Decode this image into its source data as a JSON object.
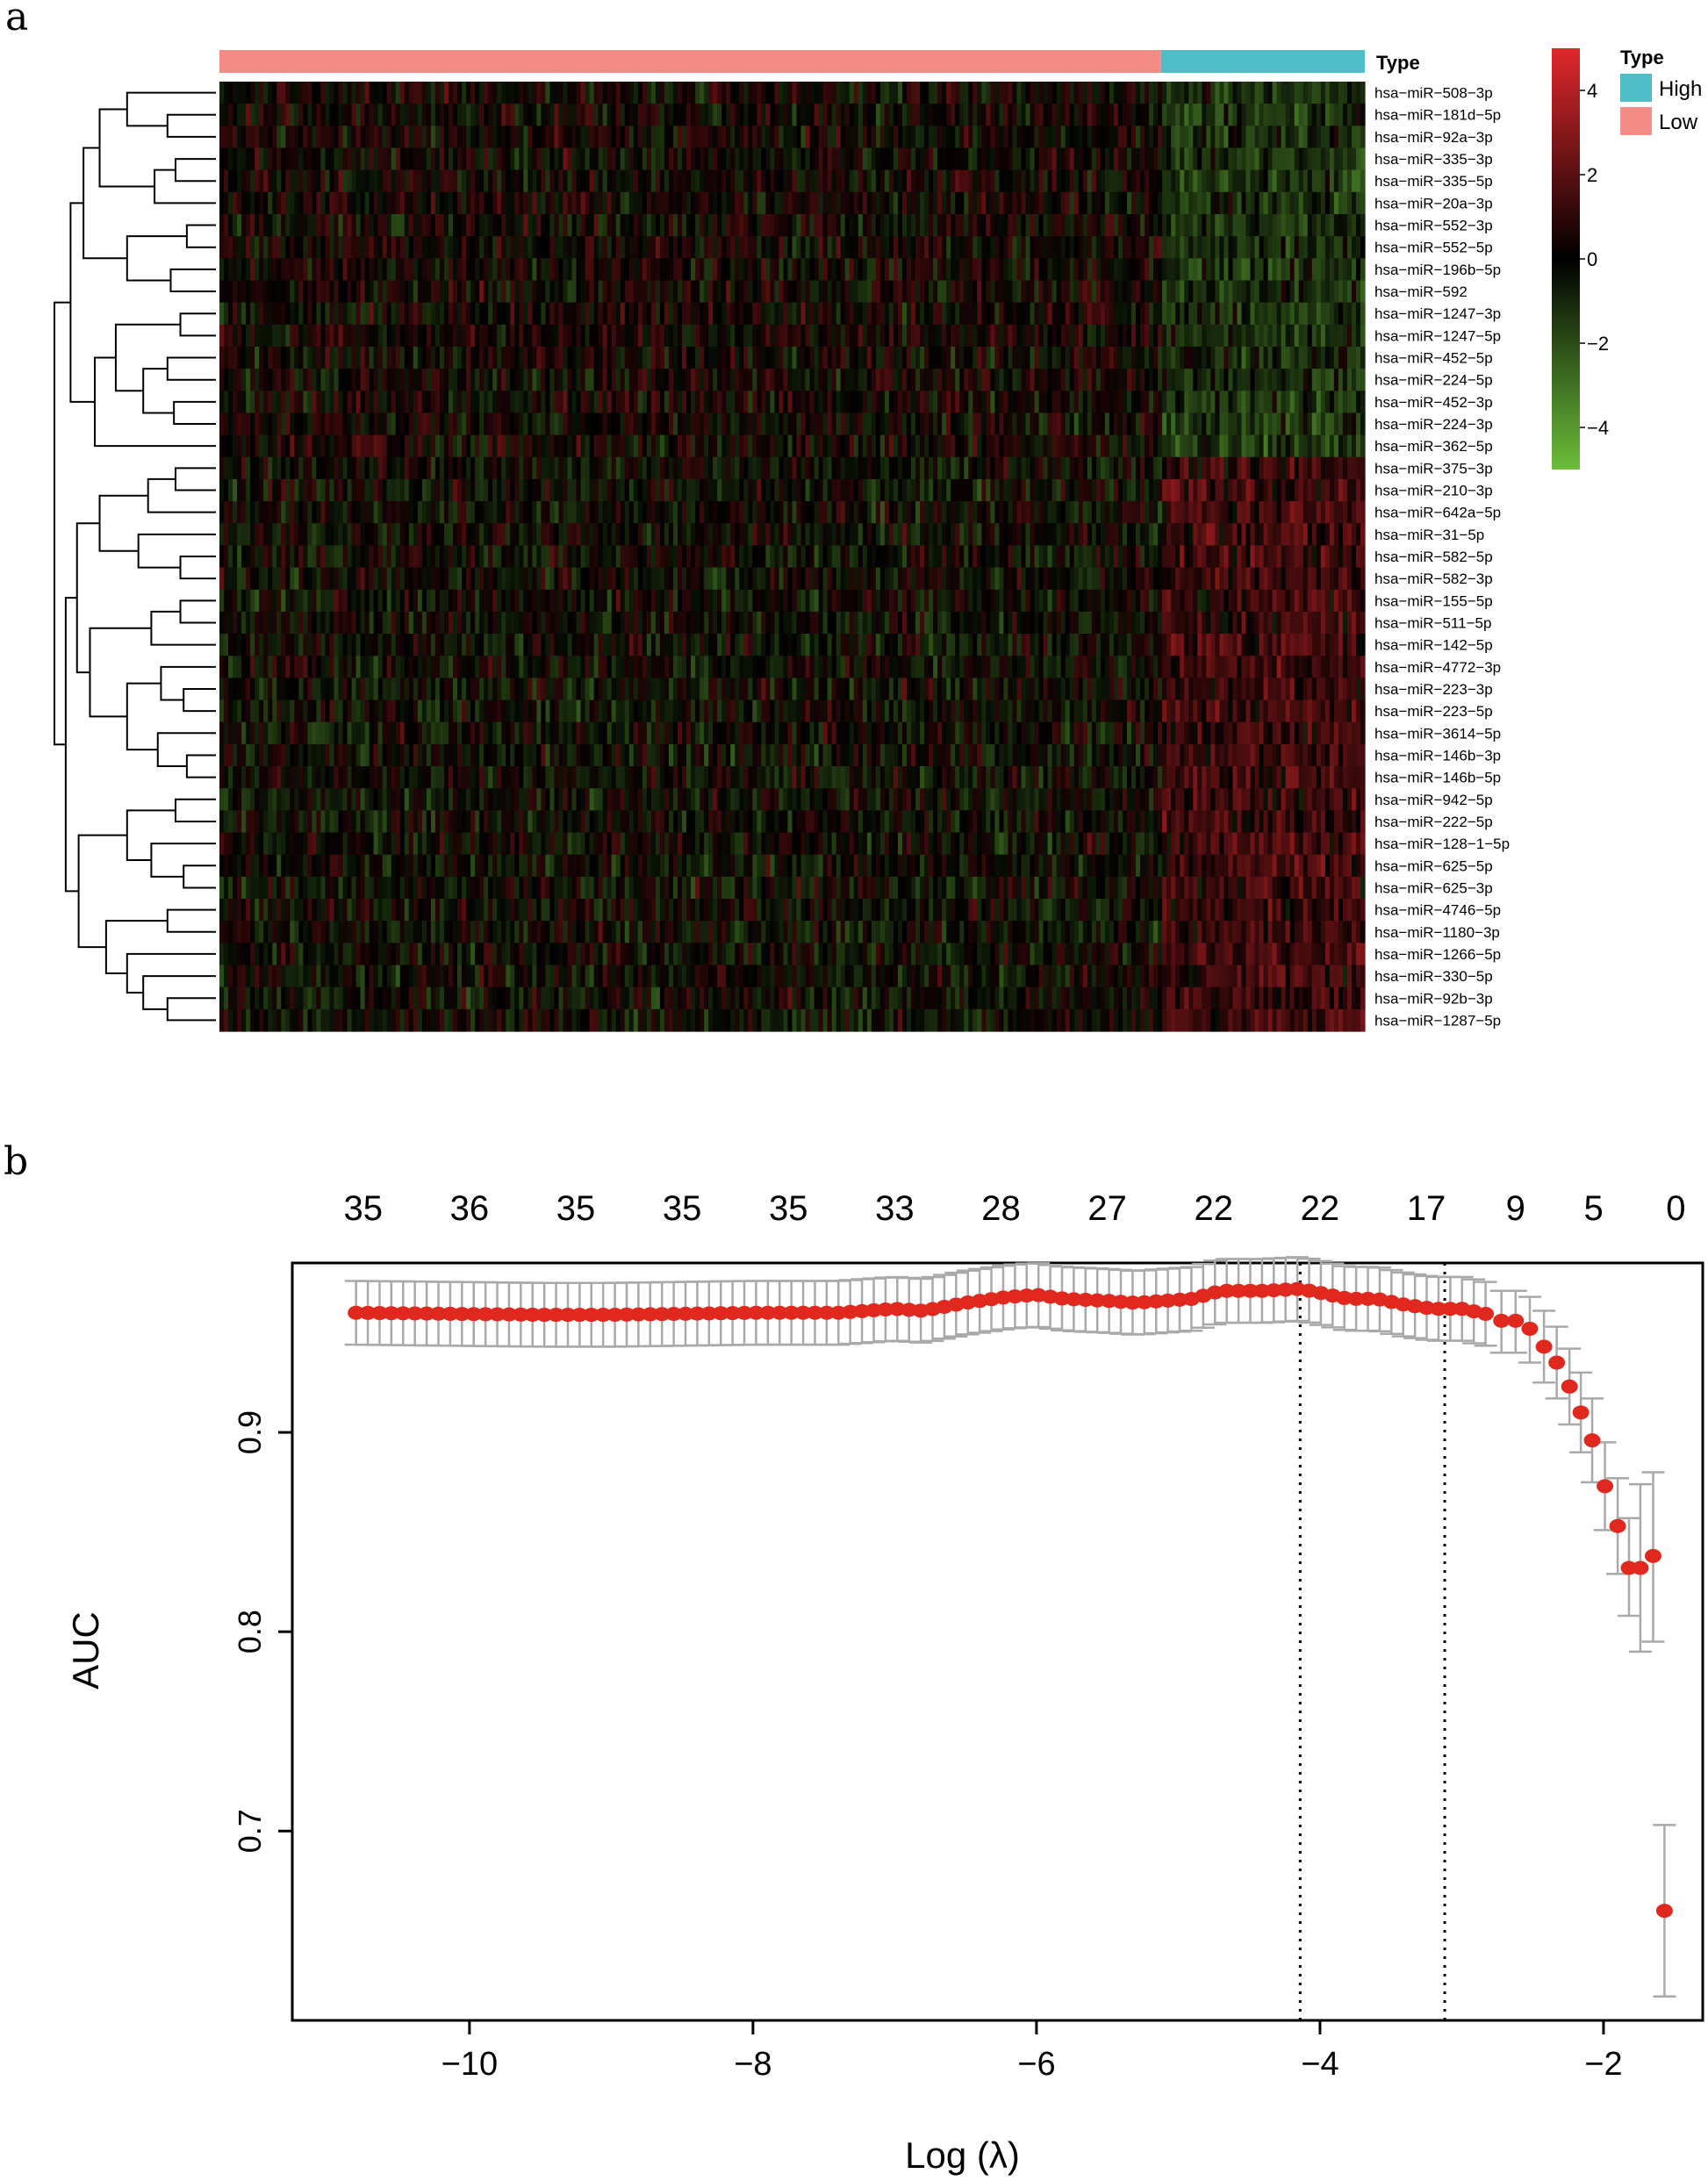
{
  "panels": {
    "a_label": "a",
    "b_label": "b"
  },
  "colors": {
    "high": "#4ebdc7",
    "low": "#f28c85",
    "heat_high": "#e0282c",
    "heat_mid": "#000000",
    "heat_low": "#6cbe3a",
    "point": "#e0281e",
    "errorbar": "#a9a9a9"
  },
  "chart_data": [
    {
      "type": "heatmap",
      "annotation_label": "Type",
      "legend": {
        "title": "Type",
        "items": [
          {
            "label": "High",
            "color": "#4ebdc7"
          },
          {
            "label": "Low",
            "color": "#f28c85"
          }
        ]
      },
      "colorbar": {
        "range": [
          -5,
          5
        ],
        "ticks": [
          "4",
          "2",
          "0",
          "−2",
          "−4"
        ],
        "tick_values": [
          4,
          2,
          0,
          -2,
          -4
        ]
      },
      "sample_groups": {
        "low_fraction": 0.822,
        "high_fraction": 0.178
      },
      "rows": [
        "hsa−miR−508−3p",
        "hsa−miR−181d−5p",
        "hsa−miR−92a−3p",
        "hsa−miR−335−3p",
        "hsa−miR−335−5p",
        "hsa−miR−20a−3p",
        "hsa−miR−552−3p",
        "hsa−miR−552−5p",
        "hsa−miR−196b−5p",
        "hsa−miR−592",
        "hsa−miR−1247−3p",
        "hsa−miR−1247−5p",
        "hsa−miR−452−5p",
        "hsa−miR−224−5p",
        "hsa−miR−452−3p",
        "hsa−miR−224−3p",
        "hsa−miR−362−5p",
        "hsa−miR−375−3p",
        "hsa−miR−210−3p",
        "hsa−miR−642a−5p",
        "hsa−miR−31−5p",
        "hsa−miR−582−5p",
        "hsa−miR−582−3p",
        "hsa−miR−155−5p",
        "hsa−miR−511−5p",
        "hsa−miR−142−5p",
        "hsa−miR−4772−3p",
        "hsa−miR−223−3p",
        "hsa−miR−223−5p",
        "hsa−miR−3614−5p",
        "hsa−miR−146b−3p",
        "hsa−miR−146b−5p",
        "hsa−miR−942−5p",
        "hsa−miR−222−5p",
        "hsa−miR−128−1−5p",
        "hsa−miR−625−5p",
        "hsa−miR−625−3p",
        "hsa−miR−4746−5p",
        "hsa−miR−1180−3p",
        "hsa−miR−1266−5p",
        "hsa−miR−330−5p",
        "hsa−miR−92b−3p",
        "hsa−miR−1287−5p"
      ],
      "row_high_group_trend": [
        -1,
        -1,
        -1,
        -1,
        -1,
        -1,
        -1,
        -1,
        -1,
        -1,
        -1,
        -1,
        -1,
        -1,
        -1,
        -1,
        -1,
        1,
        1,
        1,
        1,
        1,
        1,
        1,
        1,
        1,
        1,
        1,
        1,
        1,
        1,
        1,
        1,
        1,
        1,
        1,
        1,
        1,
        1,
        1,
        1,
        1,
        1
      ]
    },
    {
      "type": "scatter",
      "xlabel": "Log (λ)",
      "ylabel": "AUC",
      "xlim": [
        -11.25,
        -1.3
      ],
      "ylim": [
        0.605,
        0.985
      ],
      "x_ticks": [
        -10,
        -8,
        -6,
        -4,
        -2
      ],
      "x_tick_labels": [
        "−10",
        "−8",
        "−6",
        "−4",
        "−2"
      ],
      "y_ticks": [
        0.7,
        0.8,
        0.9
      ],
      "y_tick_labels": [
        "0.7",
        "0.8",
        "0.9"
      ],
      "vlines": [
        -4.14,
        -3.12
      ],
      "top_axis": {
        "positions": [
          -10.75,
          -10.0,
          -9.25,
          -8.5,
          -7.75,
          -7.0,
          -6.25,
          -5.5,
          -4.75,
          -4.0,
          -3.25,
          -2.62,
          -2.07,
          -1.49
        ],
        "labels": [
          "35",
          "36",
          "35",
          "35",
          "35",
          "33",
          "28",
          "27",
          "22",
          "22",
          "17",
          "9",
          "5",
          "0"
        ]
      },
      "smooth_points": [
        [
          -10.8,
          0.96
        ],
        [
          -9.5,
          0.959
        ],
        [
          -9.0,
          0.959
        ],
        [
          -8.0,
          0.96
        ],
        [
          -7.4,
          0.96
        ],
        [
          -7.0,
          0.962
        ],
        [
          -6.8,
          0.961
        ],
        [
          -6.5,
          0.965
        ],
        [
          -6.2,
          0.968
        ],
        [
          -6.0,
          0.969
        ],
        [
          -5.8,
          0.967
        ],
        [
          -5.5,
          0.966
        ],
        [
          -5.3,
          0.965
        ],
        [
          -5.1,
          0.966
        ],
        [
          -4.9,
          0.967
        ],
        [
          -4.7,
          0.971
        ],
        [
          -4.4,
          0.971
        ],
        [
          -4.14,
          0.972
        ],
        [
          -4.0,
          0.97
        ],
        [
          -3.8,
          0.967
        ],
        [
          -3.6,
          0.967
        ],
        [
          -3.4,
          0.964
        ],
        [
          -3.2,
          0.962
        ],
        [
          -3.0,
          0.962
        ],
        [
          -2.8,
          0.959
        ]
      ],
      "error_half_width": 0.016,
      "points": [
        {
          "x": -2.72,
          "y": 0.956,
          "lo": 0.94,
          "hi": 0.971
        },
        {
          "x": -2.62,
          "y": 0.956,
          "lo": 0.94,
          "hi": 0.971
        },
        {
          "x": -2.52,
          "y": 0.952,
          "lo": 0.935,
          "hi": 0.968
        },
        {
          "x": -2.42,
          "y": 0.943,
          "lo": 0.925,
          "hi": 0.961
        },
        {
          "x": -2.33,
          "y": 0.935,
          "lo": 0.917,
          "hi": 0.953
        },
        {
          "x": -2.24,
          "y": 0.923,
          "lo": 0.904,
          "hi": 0.942
        },
        {
          "x": -2.16,
          "y": 0.91,
          "lo": 0.89,
          "hi": 0.93
        },
        {
          "x": -2.08,
          "y": 0.896,
          "lo": 0.875,
          "hi": 0.917
        },
        {
          "x": -1.99,
          "y": 0.873,
          "lo": 0.851,
          "hi": 0.895
        },
        {
          "x": -1.9,
          "y": 0.853,
          "lo": 0.829,
          "hi": 0.877
        },
        {
          "x": -1.82,
          "y": 0.832,
          "lo": 0.808,
          "hi": 0.857
        },
        {
          "x": -1.74,
          "y": 0.832,
          "lo": 0.79,
          "hi": 0.874
        },
        {
          "x": -1.65,
          "y": 0.838,
          "lo": 0.795,
          "hi": 0.88
        },
        {
          "x": -1.57,
          "y": 0.66,
          "lo": 0.617,
          "hi": 0.703
        }
      ]
    }
  ]
}
